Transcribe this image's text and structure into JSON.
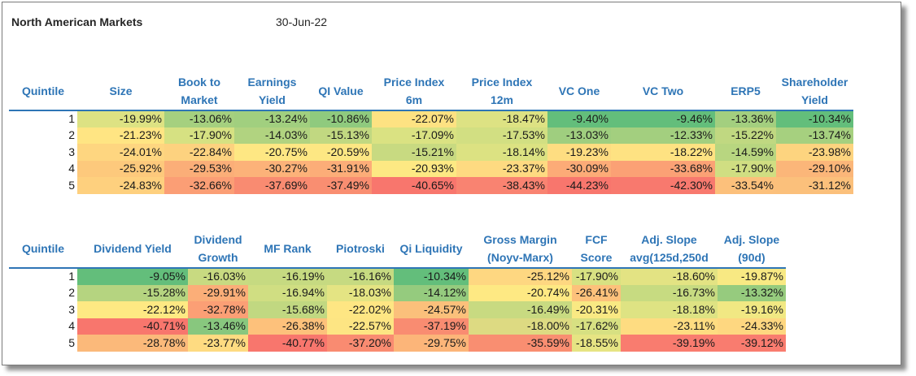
{
  "title": "North American Markets",
  "date": "30-Jun-22",
  "tables": [
    {
      "headers": [
        [
          "Quintile"
        ],
        [
          "Size"
        ],
        [
          "Book to",
          "Market"
        ],
        [
          "Earnings",
          "Yield"
        ],
        [
          "QI Value"
        ],
        [
          "Price Index",
          "6m"
        ],
        [
          "Price Index",
          "12m"
        ],
        [
          "VC One"
        ],
        [
          "VC Two"
        ],
        [
          "ERP5"
        ],
        [
          "Shareholder",
          "Yield"
        ]
      ],
      "rows": [
        {
          "quintile": "1",
          "values": [
            "-19.99%",
            "-13.06%",
            "-13.24%",
            "-10.86%",
            "-22.07%",
            "-18.47%",
            "-9.40%",
            "-9.46%",
            "-13.36%",
            "-10.34%"
          ]
        },
        {
          "quintile": "2",
          "values": [
            "-21.23%",
            "-17.90%",
            "-14.03%",
            "-15.13%",
            "-17.09%",
            "-17.53%",
            "-13.03%",
            "-12.33%",
            "-15.22%",
            "-13.74%"
          ]
        },
        {
          "quintile": "3",
          "values": [
            "-24.01%",
            "-22.84%",
            "-20.75%",
            "-20.59%",
            "-15.21%",
            "-18.14%",
            "-19.23%",
            "-18.22%",
            "-14.59%",
            "-23.98%"
          ]
        },
        {
          "quintile": "4",
          "values": [
            "-25.92%",
            "-29.53%",
            "-30.27%",
            "-31.91%",
            "-20.93%",
            "-23.37%",
            "-30.09%",
            "-33.68%",
            "-17.90%",
            "-29.10%"
          ]
        },
        {
          "quintile": "5",
          "values": [
            "-24.83%",
            "-32.66%",
            "-37.69%",
            "-37.49%",
            "-40.65%",
            "-38.43%",
            "-44.23%",
            "-42.30%",
            "-33.54%",
            "-31.12%"
          ]
        }
      ],
      "colors": [
        [
          "#dde283",
          "#a5d07f",
          "#a1cf7f",
          "#8fca7e",
          "#fde282",
          "#dde283",
          "#63be7b",
          "#63be7b",
          "#a3cf7f",
          "#63be7b"
        ],
        [
          "#ffe583",
          "#d6e182",
          "#b1d380",
          "#c1d881",
          "#dae282",
          "#d2df82",
          "#9fce7f",
          "#a3cf7f",
          "#c0d881",
          "#a6d07f"
        ],
        [
          "#fed680",
          "#fdd27f",
          "#fee783",
          "#fde783",
          "#c8da81",
          "#dce282",
          "#fedd81",
          "#fee282",
          "#b8d680",
          "#fdd47f"
        ],
        [
          "#fdc97c",
          "#fbae78",
          "#fcb279",
          "#fcad78",
          "#fde983",
          "#feda81",
          "#fcab77",
          "#fba175",
          "#d0de82",
          "#fbb679"
        ],
        [
          "#fed07e",
          "#fb9e75",
          "#f98b71",
          "#f98e71",
          "#f8766d",
          "#f98371",
          "#f8766d",
          "#f8796e",
          "#fcc07b",
          "#fbc07b"
        ]
      ]
    },
    {
      "headers": [
        [
          "Quintile"
        ],
        [
          "Dividend Yield"
        ],
        [
          "Dividend",
          "Growth"
        ],
        [
          "MF Rank"
        ],
        [
          "Piotroski"
        ],
        [
          "Qi Liquidity"
        ],
        [
          "Gross Margin",
          "(Noyv-Marx)"
        ],
        [
          "FCF",
          "Score"
        ],
        [
          "Adj. Slope",
          "avg(125d,250d"
        ],
        [
          "Adj. Slope",
          "(90d)"
        ]
      ],
      "rows": [
        {
          "quintile": "1",
          "values": [
            "-9.05%",
            "-16.03%",
            "-16.19%",
            "-16.16%",
            "-10.34%",
            "-25.12%",
            "-17.90%",
            "-18.60%",
            "-19.87%"
          ]
        },
        {
          "quintile": "2",
          "values": [
            "-15.28%",
            "-29.91%",
            "-16.94%",
            "-18.03%",
            "-14.12%",
            "-20.74%",
            "-26.41%",
            "-16.73%",
            "-13.32%"
          ]
        },
        {
          "quintile": "3",
          "values": [
            "-22.12%",
            "-32.78%",
            "-15.68%",
            "-22.02%",
            "-24.57%",
            "-16.49%",
            "-20.31%",
            "-18.18%",
            "-19.16%"
          ]
        },
        {
          "quintile": "4",
          "values": [
            "-40.71%",
            "-13.46%",
            "-26.38%",
            "-22.57%",
            "-37.19%",
            "-18.00%",
            "-17.62%",
            "-23.11%",
            "-24.33%"
          ]
        },
        {
          "quintile": "5",
          "values": [
            "-28.78%",
            "-23.77%",
            "-40.77%",
            "-37.20%",
            "-29.75%",
            "-35.59%",
            "-18.55%",
            "-39.19%",
            "-39.12%"
          ]
        }
      ],
      "colors": [
        [
          "#63be7b",
          "#c8da81",
          "#c6da81",
          "#c6da81",
          "#63be7b",
          "#fed781",
          "#d8e182",
          "#e3e383",
          "#f8e983"
        ],
        [
          "#b5d480",
          "#fbae78",
          "#d0de82",
          "#e4e483",
          "#95cb7e",
          "#fee983",
          "#fdc17b",
          "#c7db81",
          "#96cb7e"
        ],
        [
          "#fee983",
          "#fb9f75",
          "#c1d881",
          "#fee683",
          "#fbc07b",
          "#c8da81",
          "#f9e983",
          "#dee383",
          "#f1e883"
        ],
        [
          "#f8766d",
          "#88c77e",
          "#fdc17b",
          "#fde583",
          "#f98c71",
          "#ddda82",
          "#d7e082",
          "#fedc81",
          "#fed780"
        ],
        [
          "#fbb97a",
          "#fedb81",
          "#f8766d",
          "#f98b71",
          "#fcb579",
          "#f98e71",
          "#e6e483",
          "#f97c6f",
          "#f97c6f"
        ]
      ]
    }
  ]
}
